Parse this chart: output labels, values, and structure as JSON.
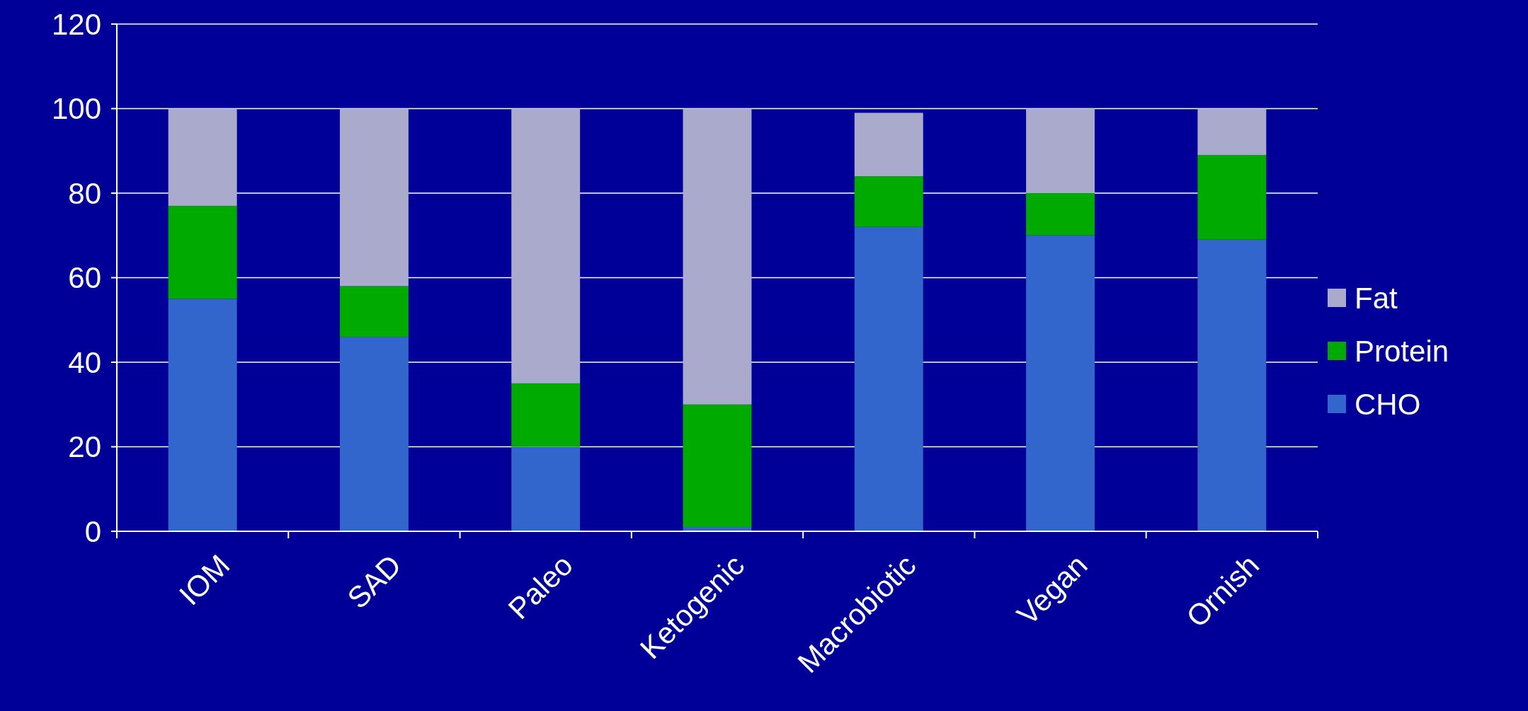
{
  "chart_data": {
    "type": "bar",
    "stacked": true,
    "categories": [
      "IOM",
      "SAD",
      "Paleo",
      "Ketogenic",
      "Macrobiotic",
      "Vegan",
      "Ornish"
    ],
    "series": [
      {
        "name": "CHO",
        "color": "#3366cc",
        "values": [
          55,
          46,
          20,
          1,
          72,
          70,
          69
        ]
      },
      {
        "name": "Protein",
        "color": "#00aa00",
        "values": [
          22,
          12,
          15,
          29,
          12,
          10,
          20
        ]
      },
      {
        "name": "Fat",
        "color": "#aaaacc",
        "values": [
          23,
          42,
          65,
          70,
          15,
          20,
          11
        ]
      }
    ],
    "ylim": [
      0,
      120
    ],
    "yticks": [
      0,
      20,
      40,
      60,
      80,
      100,
      120
    ],
    "grid": "y",
    "legend": "right"
  }
}
